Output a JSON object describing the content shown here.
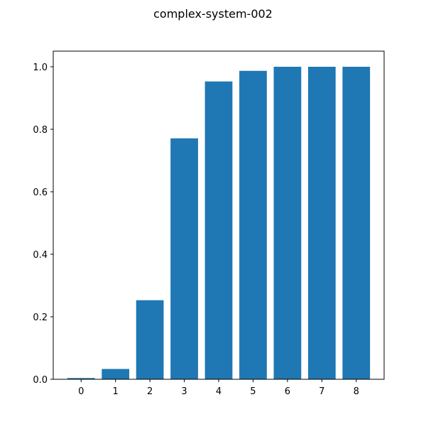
{
  "chart_data": {
    "type": "bar",
    "title": "complex-system-002",
    "xlabel": "",
    "ylabel": "",
    "categories": [
      "0",
      "1",
      "2",
      "3",
      "4",
      "5",
      "6",
      "7",
      "8"
    ],
    "values": [
      0.004,
      0.033,
      0.253,
      0.771,
      0.953,
      0.987,
      1.0,
      1.0,
      1.0
    ],
    "ylim": [
      0,
      1.05
    ],
    "yticks": [
      "0.0",
      "0.2",
      "0.4",
      "0.6",
      "0.8",
      "1.0"
    ],
    "grid": false,
    "bar_color": "#1f77b4"
  }
}
